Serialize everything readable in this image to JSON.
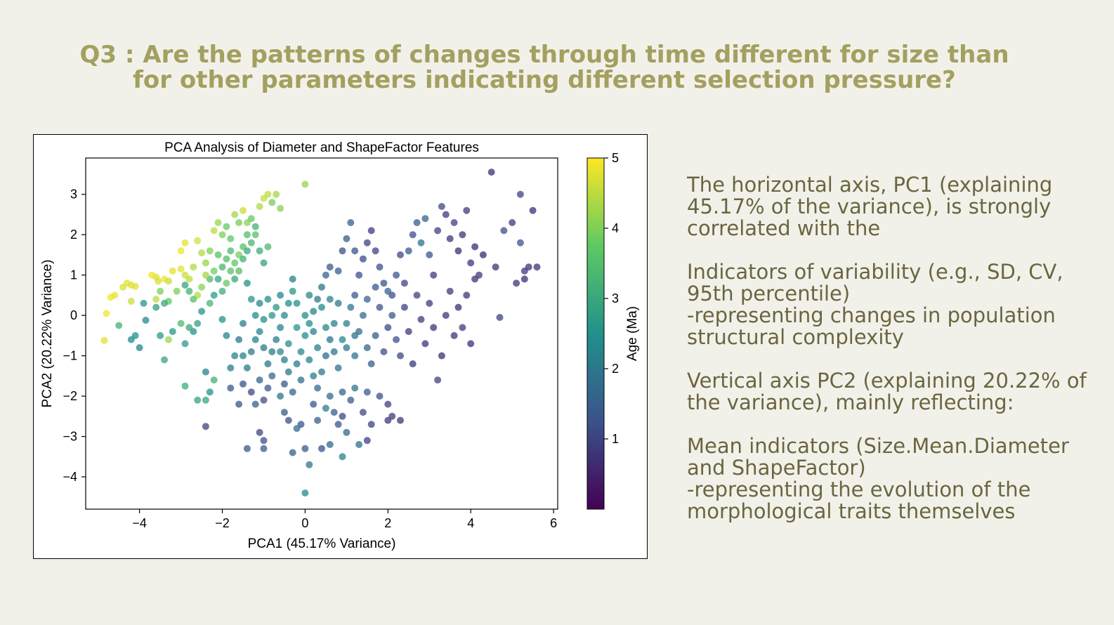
{
  "slide": {
    "title_lines": [
      "Q3 : Are the patterns of changes through time different for size than",
      "for other parameters indicating different selection pressure?"
    ],
    "colors": {
      "title": "#a3a060",
      "body_text": "#6b6540",
      "background": "#f2f1e9"
    }
  },
  "notes": {
    "p1": [
      "The horizontal axis, PC1 (explaining",
      "45.17% of the variance), is strongly",
      "correlated with the"
    ],
    "p2": [
      "Indicators of variability (e.g., SD, CV,",
      "95th percentile)",
      "-representing changes in population",
      "structural complexity"
    ],
    "p3": [
      "Vertical axis PC2 (explaining 20.22% of",
      "the variance), mainly reflecting:"
    ],
    "p4": [
      "Mean indicators (Size.Mean.Diameter",
      "and ShapeFactor)",
      "-representing the evolution of the",
      "morphological traits themselves"
    ]
  },
  "chart_data": {
    "type": "scatter",
    "title": "PCA Analysis of Diameter and ShapeFactor Features",
    "xlabel": "PCA1 (45.17% Variance)",
    "ylabel": "PCA2 (20.22% Variance)",
    "xlim": [
      -5.3,
      6.1
    ],
    "ylim": [
      -4.8,
      3.9
    ],
    "xticks": [
      -4,
      -2,
      0,
      2,
      4,
      6
    ],
    "yticks": [
      -4,
      -3,
      -2,
      -1,
      0,
      1,
      2,
      3
    ],
    "grid": false,
    "colormap": "viridis",
    "colorbar": {
      "label": "Age (Ma)",
      "range": [
        0,
        5
      ],
      "ticks": [
        1,
        2,
        3,
        4,
        5
      ]
    },
    "points": [
      [
        -4.8,
        0.05,
        4.9
      ],
      [
        -4.85,
        -0.62,
        4.8
      ],
      [
        -4.7,
        0.45,
        4.9
      ],
      [
        -4.6,
        0.5,
        4.8
      ],
      [
        -4.4,
        0.7,
        4.7
      ],
      [
        -4.3,
        0.8,
        4.8
      ],
      [
        -4.2,
        0.75,
        4.7
      ],
      [
        -4.1,
        0.72,
        4.8
      ],
      [
        -4.2,
        0.35,
        4.6
      ],
      [
        -4.5,
        -0.25,
        3.2
      ],
      [
        -4.1,
        -0.5,
        2.5
      ],
      [
        -4.2,
        -0.6,
        2.4
      ],
      [
        -4.0,
        -0.8,
        2.2
      ],
      [
        -3.9,
        0.3,
        2.6
      ],
      [
        -3.85,
        -0.12,
        2.3
      ],
      [
        -3.7,
        1.0,
        4.9
      ],
      [
        -3.6,
        0.95,
        4.8
      ],
      [
        -3.55,
        0.85,
        4.7
      ],
      [
        -3.4,
        0.9,
        4.9
      ],
      [
        -3.3,
        0.85,
        4.6
      ],
      [
        -3.2,
        1.1,
        4.8
      ],
      [
        -3.5,
        0.6,
        4.0
      ],
      [
        -3.6,
        0.4,
        4.5
      ],
      [
        -3.3,
        0.35,
        3.8
      ],
      [
        -3.4,
        0.3,
        3.0
      ],
      [
        -3.6,
        0.2,
        2.8
      ],
      [
        -3.5,
        -0.5,
        2.7
      ],
      [
        -3.4,
        -1.1,
        3.0
      ],
      [
        -3.3,
        -0.6,
        4.2
      ],
      [
        -3.2,
        -0.4,
        2.6
      ],
      [
        -3.0,
        1.15,
        4.8
      ],
      [
        -2.9,
        1.0,
        4.6
      ],
      [
        -2.8,
        0.9,
        4.5
      ],
      [
        -2.7,
        1.2,
        4.4
      ],
      [
        -3.0,
        1.6,
        4.9
      ],
      [
        -2.9,
        1.8,
        4.8
      ],
      [
        -2.6,
        1.85,
        4.7
      ],
      [
        -2.5,
        1.55,
        4.4
      ],
      [
        -2.4,
        1.3,
        4.2
      ],
      [
        -2.3,
        1.6,
        4.0
      ],
      [
        -2.2,
        2.1,
        4.5
      ],
      [
        -2.1,
        2.3,
        4.2
      ],
      [
        -2.0,
        2.0,
        4.0
      ],
      [
        -1.9,
        2.2,
        3.8
      ],
      [
        -1.8,
        1.9,
        3.7
      ],
      [
        -1.7,
        2.5,
        4.3
      ],
      [
        -1.6,
        2.3,
        3.9
      ],
      [
        -1.5,
        2.6,
        4.6
      ],
      [
        -1.4,
        2.3,
        4.1
      ],
      [
        -1.3,
        2.4,
        3.8
      ],
      [
        -1.2,
        2.0,
        3.6
      ],
      [
        -1.1,
        2.7,
        4.4
      ],
      [
        -1.0,
        2.9,
        4.6
      ],
      [
        -0.9,
        3.0,
        4.5
      ],
      [
        -0.7,
        3.0,
        4.3
      ],
      [
        -0.6,
        2.65,
        4.1
      ],
      [
        0.0,
        3.25,
        4.2
      ],
      [
        -0.8,
        2.8,
        3.9
      ],
      [
        -1.2,
        2.2,
        3.2
      ],
      [
        -1.4,
        2.0,
        3.5
      ],
      [
        -1.5,
        1.7,
        3.6
      ],
      [
        -1.6,
        1.5,
        3.9
      ],
      [
        -1.7,
        1.3,
        3.7
      ],
      [
        -1.8,
        1.6,
        3.4
      ],
      [
        -1.9,
        1.4,
        3.5
      ],
      [
        -2.0,
        1.2,
        3.3
      ],
      [
        -2.1,
        1.5,
        3.6
      ],
      [
        -2.2,
        1.1,
        3.9
      ],
      [
        -2.3,
        0.9,
        3.4
      ],
      [
        -2.4,
        1.0,
        4.3
      ],
      [
        -2.5,
        0.7,
        4.1
      ],
      [
        -2.6,
        0.5,
        4.4
      ],
      [
        -2.7,
        0.4,
        3.5
      ],
      [
        -2.8,
        0.6,
        3.2
      ],
      [
        -2.9,
        0.75,
        2.9
      ],
      [
        -3.1,
        0.6,
        4.0
      ],
      [
        -1.3,
        1.8,
        3.3
      ],
      [
        -1.4,
        1.6,
        3.0
      ],
      [
        -1.5,
        1.4,
        3.2
      ],
      [
        -1.6,
        1.1,
        3.5
      ],
      [
        -1.7,
        0.9,
        3.0
      ],
      [
        -1.8,
        1.1,
        3.6
      ],
      [
        -1.9,
        0.8,
        3.8
      ],
      [
        -2.0,
        0.6,
        3.1
      ],
      [
        -2.1,
        0.9,
        2.9
      ],
      [
        -2.2,
        0.5,
        2.7
      ],
      [
        -2.3,
        0.3,
        3.3
      ],
      [
        -2.5,
        0.1,
        2.6
      ],
      [
        -2.6,
        -0.2,
        2.8
      ],
      [
        -2.7,
        -0.4,
        2.5
      ],
      [
        -2.8,
        -0.3,
        3.0
      ],
      [
        -2.9,
        -0.7,
        2.7
      ],
      [
        -3.0,
        -0.2,
        3.4
      ],
      [
        -1.1,
        1.6,
        3.1
      ],
      [
        -1.0,
        1.3,
        2.9
      ],
      [
        -0.9,
        1.7,
        3.4
      ],
      [
        -2.4,
        -1.4,
        2.2
      ],
      [
        -2.2,
        -1.6,
        3.2
      ],
      [
        -2.3,
        -1.9,
        2.5
      ],
      [
        -2.4,
        -2.1,
        3.0
      ],
      [
        -2.9,
        -1.75,
        3.1
      ],
      [
        -2.6,
        -2.1,
        2.9
      ],
      [
        -2.4,
        -2.75,
        1.0
      ],
      [
        -1.8,
        -1.8,
        1.4
      ],
      [
        -1.6,
        -2.2,
        1.3
      ],
      [
        -1.5,
        -1.7,
        1.2
      ],
      [
        -1.3,
        -1.9,
        1.1
      ],
      [
        -1.2,
        -2.2,
        1.5
      ],
      [
        -1.1,
        -1.6,
        1.6
      ],
      [
        -1.0,
        -2.1,
        1.2
      ],
      [
        -0.9,
        -1.8,
        1.4
      ],
      [
        -0.8,
        -1.5,
        1.7
      ],
      [
        -0.6,
        -2.0,
        1.9
      ],
      [
        -0.5,
        -1.7,
        1.3
      ],
      [
        -1.4,
        -3.3,
        1.3
      ],
      [
        -1.0,
        -3.1,
        1.2
      ],
      [
        -1.0,
        -3.3,
        1.4
      ],
      [
        -1.1,
        -2.9,
        1.1
      ],
      [
        -0.3,
        -3.4,
        1.5
      ],
      [
        -0.1,
        -2.7,
        1.3
      ],
      [
        0.0,
        -3.3,
        1.4
      ],
      [
        0.1,
        -3.7,
        2.0
      ],
      [
        0.4,
        -3.3,
        1.2
      ],
      [
        0.6,
        -3.2,
        1.6
      ],
      [
        0.9,
        -3.5,
        2.2
      ],
      [
        1.3,
        -3.2,
        1.8
      ],
      [
        1.5,
        -3.1,
        1.0
      ],
      [
        0.0,
        -4.4,
        2.4
      ],
      [
        -0.2,
        -2.8,
        1.8
      ],
      [
        0.5,
        -2.3,
        2.1
      ],
      [
        0.7,
        -2.4,
        1.5
      ],
      [
        0.9,
        -2.5,
        1.1
      ],
      [
        0.8,
        -2.7,
        1.3
      ],
      [
        1.0,
        -2.9,
        1.7
      ],
      [
        1.2,
        -1.8,
        1.9
      ],
      [
        1.5,
        -1.9,
        1.4
      ],
      [
        1.8,
        -2.0,
        1.2
      ],
      [
        2.0,
        -2.2,
        1.0
      ],
      [
        2.1,
        -2.5,
        0.9
      ],
      [
        2.3,
        -2.6,
        0.8
      ],
      [
        -0.2,
        -1.2,
        2.0
      ],
      [
        -0.1,
        -0.9,
        2.3
      ],
      [
        0.0,
        -0.5,
        2.5
      ],
      [
        0.1,
        -0.2,
        2.4
      ],
      [
        0.2,
        0.1,
        2.2
      ],
      [
        0.3,
        0.4,
        2.1
      ],
      [
        0.4,
        0.7,
        1.9
      ],
      [
        0.5,
        1.0,
        1.6
      ],
      [
        0.6,
        1.2,
        1.4
      ],
      [
        0.8,
        1.1,
        1.5
      ],
      [
        -0.3,
        0.6,
        2.6
      ],
      [
        -0.4,
        0.3,
        2.4
      ],
      [
        -0.5,
        0.0,
        2.3
      ],
      [
        -0.6,
        -0.3,
        2.2
      ],
      [
        -0.7,
        -0.6,
        2.1
      ],
      [
        -0.8,
        -0.9,
        2.0
      ],
      [
        -0.9,
        -1.2,
        1.9
      ],
      [
        -1.0,
        -0.8,
        2.0
      ],
      [
        -1.1,
        -0.4,
        2.2
      ],
      [
        -1.2,
        0.0,
        2.4
      ],
      [
        -1.3,
        0.4,
        2.6
      ],
      [
        -1.4,
        0.8,
        2.5
      ],
      [
        -1.5,
        -0.2,
        2.1
      ],
      [
        -1.6,
        -0.6,
        2.0
      ],
      [
        -1.7,
        -1.0,
        2.2
      ],
      [
        -1.8,
        -1.3,
        2.1
      ],
      [
        -1.9,
        -0.5,
        2.3
      ],
      [
        -2.0,
        -0.1,
        2.5
      ],
      [
        0.9,
        -0.6,
        2.3
      ],
      [
        1.0,
        -0.2,
        2.1
      ],
      [
        1.1,
        0.2,
        2.0
      ],
      [
        1.2,
        -1.0,
        1.9
      ],
      [
        1.3,
        -0.4,
        1.8
      ],
      [
        1.4,
        0.0,
        1.7
      ],
      [
        1.5,
        -0.8,
        1.6
      ],
      [
        1.6,
        -1.2,
        1.5
      ],
      [
        1.7,
        -0.5,
        1.4
      ],
      [
        1.8,
        0.2,
        1.3
      ],
      [
        1.9,
        -0.9,
        1.2
      ],
      [
        2.0,
        -0.3,
        1.1
      ],
      [
        0.4,
        -1.4,
        2.0
      ],
      [
        0.5,
        -1.0,
        1.8
      ],
      [
        0.6,
        -0.6,
        1.9
      ],
      [
        0.7,
        -0.2,
        2.2
      ],
      [
        0.8,
        0.3,
        2.0
      ],
      [
        0.3,
        -1.8,
        1.7
      ],
      [
        0.2,
        -1.5,
        2.1
      ],
      [
        0.1,
        -1.1,
        2.2
      ],
      [
        -0.1,
        -1.6,
        1.8
      ],
      [
        -0.3,
        -1.9,
        1.6
      ],
      [
        -0.4,
        -1.4,
        2.0
      ],
      [
        -0.5,
        -1.1,
        2.1
      ],
      [
        2.1,
        0.5,
        1.2
      ],
      [
        2.2,
        1.0,
        1.3
      ],
      [
        2.3,
        1.5,
        1.1
      ],
      [
        2.4,
        0.8,
        1.0
      ],
      [
        2.5,
        1.6,
        1.4
      ],
      [
        2.6,
        2.0,
        1.2
      ],
      [
        2.7,
        2.3,
        1.5
      ],
      [
        2.8,
        1.8,
        1.8
      ],
      [
        2.9,
        2.4,
        1.6
      ],
      [
        3.0,
        1.5,
        1.3
      ],
      [
        3.1,
        1.0,
        0.9
      ],
      [
        3.2,
        2.1,
        1.0
      ],
      [
        3.3,
        2.7,
        1.1
      ],
      [
        3.4,
        2.5,
        0.9
      ],
      [
        3.5,
        1.9,
        0.8
      ],
      [
        3.6,
        2.3,
        1.0
      ],
      [
        3.7,
        1.6,
        0.7
      ],
      [
        3.8,
        2.0,
        0.8
      ],
      [
        3.9,
        2.6,
        0.9
      ],
      [
        4.0,
        1.3,
        0.8
      ],
      [
        4.1,
        1.7,
        0.7
      ],
      [
        4.2,
        1.0,
        0.9
      ],
      [
        4.3,
        1.5,
        0.6
      ],
      [
        4.5,
        3.55,
        0.7
      ],
      [
        4.6,
        1.2,
        0.8
      ],
      [
        4.7,
        -0.05,
        1.0
      ],
      [
        4.8,
        2.1,
        1.2
      ],
      [
        5.0,
        2.3,
        0.9
      ],
      [
        5.1,
        0.8,
        0.8
      ],
      [
        5.2,
        3.0,
        1.0
      ],
      [
        5.2,
        1.8,
        1.3
      ],
      [
        5.3,
        1.1,
        0.9
      ],
      [
        5.4,
        1.2,
        0.8
      ],
      [
        5.5,
        2.6,
        0.7
      ],
      [
        5.6,
        1.2,
        0.8
      ],
      [
        5.3,
        0.9,
        0.7
      ],
      [
        2.0,
        0.6,
        1.6
      ],
      [
        2.1,
        0.0,
        1.4
      ],
      [
        2.2,
        -0.6,
        1.2
      ],
      [
        2.3,
        -1.0,
        1.1
      ],
      [
        2.4,
        0.2,
        1.0
      ],
      [
        2.5,
        -0.4,
        0.9
      ],
      [
        2.6,
        -1.2,
        0.8
      ],
      [
        2.7,
        0.5,
        1.0
      ],
      [
        2.8,
        -0.1,
        0.9
      ],
      [
        2.9,
        -0.7,
        0.8
      ],
      [
        3.0,
        0.3,
        0.9
      ],
      [
        3.1,
        -0.3,
        0.8
      ],
      [
        3.2,
        -1.6,
        1.0
      ],
      [
        3.3,
        -1.0,
        0.7
      ],
      [
        3.4,
        0.0,
        0.8
      ],
      [
        3.5,
        0.6,
        0.9
      ],
      [
        3.6,
        -0.5,
        0.8
      ],
      [
        3.7,
        0.2,
        0.7
      ],
      [
        3.8,
        -0.3,
        0.9
      ],
      [
        3.9,
        0.5,
        0.8
      ],
      [
        4.0,
        -0.7,
        0.7
      ],
      [
        4.1,
        0.9,
        0.8
      ],
      [
        1.2,
        0.5,
        1.4
      ],
      [
        1.3,
        1.0,
        1.2
      ],
      [
        1.4,
        1.4,
        1.1
      ],
      [
        1.5,
        1.8,
        1.0
      ],
      [
        1.6,
        2.1,
        0.9
      ],
      [
        1.7,
        1.6,
        1.0
      ],
      [
        1.8,
        1.2,
        1.2
      ],
      [
        1.9,
        0.8,
        1.3
      ],
      [
        1.1,
        2.3,
        1.5
      ],
      [
        1.0,
        1.9,
        1.4
      ],
      [
        0.9,
        1.6,
        1.2
      ],
      [
        1.2,
        1.6,
        1.3
      ],
      [
        -0.6,
        0.5,
        2.3
      ],
      [
        -0.3,
        0.9,
        2.1
      ],
      [
        -0.2,
        0.3,
        2.5
      ],
      [
        0.0,
        0.0,
        2.4
      ],
      [
        0.1,
        0.5,
        2.3
      ],
      [
        0.2,
        -0.4,
        2.2
      ],
      [
        0.3,
        -0.8,
        2.1
      ],
      [
        0.4,
        0.2,
        2.4
      ],
      [
        0.5,
        -0.3,
        2.3
      ],
      [
        0.6,
        0.4,
        2.2
      ],
      [
        0.7,
        -0.9,
        2.0
      ],
      [
        0.8,
        -1.3,
        1.9
      ],
      [
        -0.2,
        -0.3,
        2.6
      ],
      [
        -0.4,
        -0.7,
        2.5
      ],
      [
        -0.6,
        -0.9,
        2.3
      ],
      [
        -0.7,
        0.2,
        2.7
      ],
      [
        -0.8,
        0.0,
        2.6
      ],
      [
        -0.9,
        0.4,
        2.4
      ],
      [
        -1.0,
        -0.1,
        2.5
      ],
      [
        -1.1,
        0.3,
        2.3
      ],
      [
        -1.2,
        -0.6,
        2.2
      ],
      [
        -1.3,
        -0.9,
        2.1
      ],
      [
        -1.4,
        -1.3,
        2.0
      ],
      [
        -1.5,
        -1.0,
        2.2
      ],
      [
        -0.5,
        -2.4,
        1.4
      ],
      [
        -0.4,
        -2.6,
        1.2
      ],
      [
        0.2,
        -2.2,
        1.3
      ],
      [
        0.3,
        -2.6,
        1.5
      ],
      [
        0.6,
        -2.0,
        1.7
      ],
      [
        1.4,
        -2.4,
        1.1
      ],
      [
        1.6,
        -2.7,
        1.0
      ],
      [
        2.0,
        -2.6,
        0.9
      ],
      [
        0.9,
        -1.9,
        1.6
      ],
      [
        1.1,
        -2.1,
        1.4
      ],
      [
        1.0,
        -0.8,
        2.0
      ],
      [
        1.2,
        -0.5,
        1.9
      ],
      [
        1.5,
        0.4,
        1.6
      ],
      [
        1.7,
        0.7,
        1.4
      ]
    ]
  }
}
